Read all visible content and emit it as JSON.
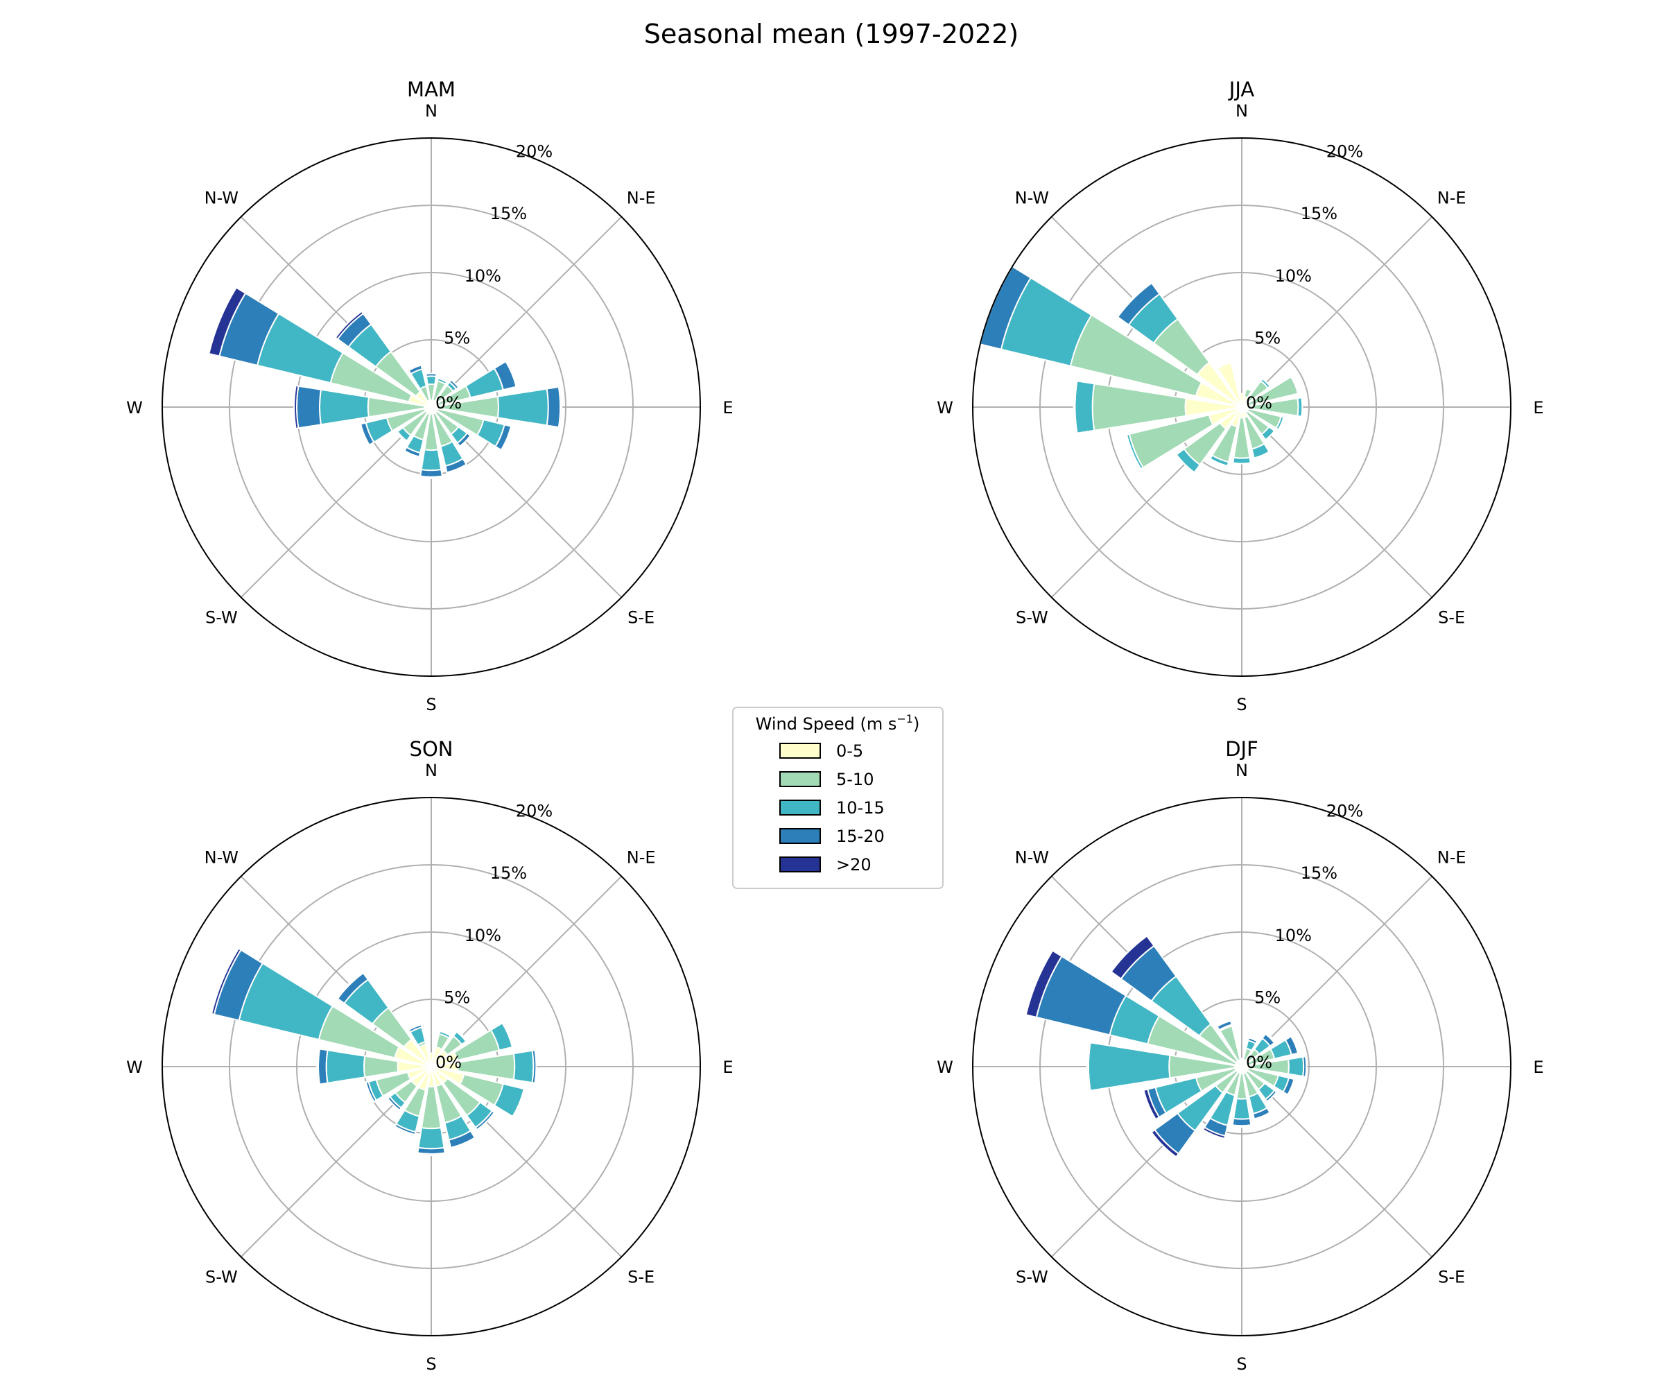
{
  "figure": {
    "title": "Seasonal mean (1997-2022)"
  },
  "palette": {
    "0-5": "#ffffcc",
    "5-10": "#a1dab4",
    "10-15": "#41b6c4",
    "15-20": "#2c7fb8",
    ">20": "#253494",
    "grid": "#b0b0b0",
    "rim": "#000000"
  },
  "axes": {
    "direction_labels": [
      "N",
      "N-E",
      "E",
      "S-E",
      "S",
      "S-W",
      "W",
      "N-W"
    ],
    "radial_ticks": [
      "0%",
      "5%",
      "10%",
      "15%",
      "20%"
    ]
  },
  "legend": {
    "title_main": "Wind Speed (m s",
    "title_sup": "−1",
    "title_end": ")",
    "entries": [
      {
        "label": "0-5",
        "color": "#ffffcc"
      },
      {
        "label": "5-10",
        "color": "#a1dab4"
      },
      {
        "label": "10-15",
        "color": "#41b6c4"
      },
      {
        "label": "15-20",
        "color": "#2c7fb8"
      },
      {
        "label": ">20",
        "color": "#253494"
      }
    ]
  },
  "chart_data": [
    {
      "type": "windrose",
      "title": "MAM",
      "rlim": [
        0,
        20
      ],
      "unit": "%",
      "bins": [
        "0-5",
        "5-10",
        "10-15",
        "15-20",
        ">20"
      ],
      "directions_deg": [
        0,
        22.5,
        45,
        67.5,
        90,
        112.5,
        135,
        157.5,
        180,
        202.5,
        225,
        247.5,
        270,
        292.5,
        315,
        337.5
      ],
      "cumulative": [
        [
          0.5,
          1.7,
          2.3,
          2.5,
          2.5
        ],
        [
          0.5,
          2.0,
          2.2,
          2.3,
          2.3
        ],
        [
          0.5,
          2.0,
          2.3,
          2.5,
          2.5
        ],
        [
          0.5,
          3.0,
          5.5,
          6.5,
          6.6
        ],
        [
          0.5,
          5.0,
          8.7,
          9.6,
          9.7
        ],
        [
          0.5,
          4.0,
          5.6,
          6.1,
          6.2
        ],
        [
          0.5,
          2.5,
          3.3,
          3.6,
          3.6
        ],
        [
          0.5,
          3.0,
          4.5,
          5.0,
          5.1
        ],
        [
          0.5,
          3.2,
          4.7,
          5.2,
          5.3
        ],
        [
          0.5,
          2.5,
          3.5,
          3.8,
          3.8
        ],
        [
          0.5,
          2.6,
          3.1,
          3.2,
          3.2
        ],
        [
          0.5,
          3.4,
          5.0,
          5.4,
          5.5
        ],
        [
          0.5,
          4.7,
          8.3,
          10.0,
          10.2
        ],
        [
          1.7,
          7.7,
          13.3,
          16.2,
          17.0
        ],
        [
          1.4,
          5.1,
          7.6,
          8.6,
          8.8
        ],
        [
          0.5,
          1.6,
          2.9,
          3.2,
          3.3
        ]
      ]
    },
    {
      "type": "windrose",
      "title": "JJA",
      "rlim": [
        0,
        20
      ],
      "unit": "%",
      "bins": [
        "0-5",
        "5-10",
        "10-15",
        "15-20",
        ">20"
      ],
      "directions_deg": [
        0,
        22.5,
        45,
        67.5,
        90,
        112.5,
        135,
        157.5,
        180,
        202.5,
        225,
        247.5,
        270,
        292.5,
        315,
        337.5
      ],
      "cumulative": [
        [
          1.0,
          1.0,
          1.0,
          1.0,
          1.0
        ],
        [
          0.8,
          1.4,
          1.5,
          1.5,
          1.5
        ],
        [
          0.5,
          2.4,
          2.6,
          2.6,
          2.6
        ],
        [
          0.5,
          4.3,
          4.4,
          4.4,
          4.4
        ],
        [
          0.5,
          4.2,
          4.5,
          4.5,
          4.5
        ],
        [
          0.5,
          3.0,
          3.2,
          3.2,
          3.2
        ],
        [
          0.5,
          2.5,
          3.0,
          3.0,
          3.0
        ],
        [
          0.8,
          3.2,
          3.9,
          4.0,
          4.0
        ],
        [
          0.8,
          3.8,
          4.2,
          4.2,
          4.2
        ],
        [
          1.5,
          4.2,
          4.5,
          4.5,
          4.5
        ],
        [
          2.0,
          5.3,
          6.0,
          6.0,
          6.0
        ],
        [
          2.5,
          8.6,
          8.8,
          8.9,
          8.9
        ],
        [
          4.2,
          11.1,
          12.4,
          12.5,
          12.5
        ],
        [
          3.5,
          13.1,
          18.4,
          20.0,
          20.1
        ],
        [
          4.1,
          8.1,
          10.4,
          11.4,
          11.5
        ],
        [
          3.4,
          3.2,
          3.4,
          3.5,
          3.5
        ]
      ]
    },
    {
      "type": "windrose",
      "title": "SON",
      "rlim": [
        0,
        20
      ],
      "unit": "%",
      "bins": [
        "0-5",
        "5-10",
        "10-15",
        "15-20",
        ">20"
      ],
      "directions_deg": [
        0,
        22.5,
        45,
        67.5,
        90,
        112.5,
        135,
        157.5,
        180,
        202.5,
        225,
        247.5,
        270,
        292.5,
        315,
        337.5
      ],
      "cumulative": [
        [
          1.0,
          1.0,
          1.0,
          1.0,
          1.0
        ],
        [
          1.5,
          2.5,
          2.7,
          2.7,
          2.7
        ],
        [
          1.5,
          2.8,
          3.2,
          3.3,
          3.3
        ],
        [
          2.0,
          5.2,
          6.2,
          6.3,
          6.3
        ],
        [
          2.0,
          6.2,
          7.6,
          7.8,
          7.8
        ],
        [
          2.5,
          5.5,
          7.1,
          7.2,
          7.2
        ],
        [
          1.5,
          4.5,
          5.6,
          5.8,
          5.8
        ],
        [
          1.5,
          4.3,
          5.6,
          6.2,
          6.3
        ],
        [
          1.5,
          4.6,
          6.1,
          6.5,
          6.6
        ],
        [
          1.8,
          3.8,
          5.0,
          5.2,
          5.3
        ],
        [
          1.8,
          3.3,
          3.8,
          4.0,
          4.0
        ],
        [
          1.8,
          4.2,
          4.8,
          5.0,
          5.1
        ],
        [
          2.5,
          5.0,
          7.8,
          8.4,
          8.5
        ],
        [
          2.8,
          8.6,
          14.7,
          16.6,
          16.8
        ],
        [
          2.5,
          5.4,
          8.0,
          8.6,
          8.7
        ],
        [
          1.7,
          1.9,
          3.0,
          3.2,
          3.3
        ]
      ]
    },
    {
      "type": "windrose",
      "title": "DJF",
      "rlim": [
        0,
        20
      ],
      "unit": "%",
      "bins": [
        "0-5",
        "5-10",
        "10-15",
        "15-20",
        ">20"
      ],
      "directions_deg": [
        0,
        22.5,
        45,
        67.5,
        90,
        112.5,
        135,
        157.5,
        180,
        202.5,
        225,
        247.5,
        270,
        292.5,
        315,
        337.5
      ],
      "cumulative": [
        [
          0.5,
          0.6,
          0.6,
          0.6,
          0.6
        ],
        [
          0.5,
          1.4,
          2.0,
          2.2,
          2.2
        ],
        [
          0.5,
          1.6,
          2.6,
          3.0,
          3.1
        ],
        [
          0.5,
          2.5,
          3.8,
          4.3,
          4.4
        ],
        [
          0.5,
          3.5,
          4.6,
          4.8,
          4.8
        ],
        [
          0.5,
          2.8,
          3.6,
          4.0,
          4.1
        ],
        [
          0.5,
          2.1,
          3.0,
          3.2,
          3.2
        ],
        [
          0.5,
          2.3,
          3.6,
          4.0,
          4.1
        ],
        [
          0.5,
          2.4,
          3.9,
          4.4,
          4.5
        ],
        [
          0.5,
          2.2,
          4.5,
          5.3,
          5.5
        ],
        [
          0.5,
          2.4,
          5.9,
          8.0,
          8.3
        ],
        [
          0.5,
          3.5,
          6.6,
          7.2,
          7.5
        ],
        [
          0.5,
          5.4,
          11.4,
          11.4,
          11.5
        ],
        [
          0.5,
          7.2,
          10.1,
          15.7,
          16.5
        ],
        [
          0.5,
          3.9,
          8.3,
          11.1,
          12.0
        ],
        [
          0.5,
          3.1,
          3.2,
          3.5,
          3.6
        ]
      ]
    }
  ]
}
